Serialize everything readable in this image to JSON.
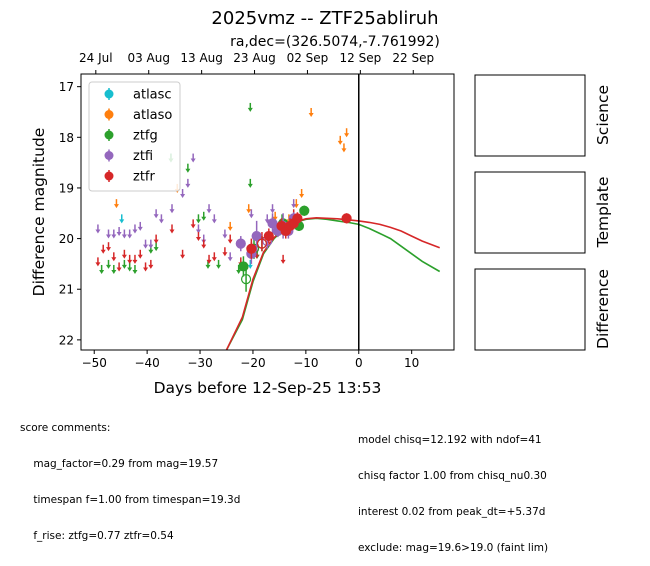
{
  "title": "2025vmz -- ZTF25abliruh",
  "subtitle": "ra,dec=(326.5074,-7.761992)",
  "chart_data": {
    "type": "scatter",
    "xlabel": "Days before 12-Sep-25 13:53",
    "ylabel": "Difference magnitude",
    "xlim": [
      -52.5,
      18
    ],
    "ylim": [
      22.2,
      16.75
    ],
    "xticks": [
      -50,
      -40,
      -30,
      -20,
      -10,
      0,
      10
    ],
    "yticks": [
      17,
      18,
      19,
      20,
      21,
      22
    ],
    "top_ticks": [
      {
        "x": -49.7,
        "label": "24 Jul"
      },
      {
        "x": -39.7,
        "label": "03 Aug"
      },
      {
        "x": -29.7,
        "label": "13 Aug"
      },
      {
        "x": -19.7,
        "label": "23 Aug"
      },
      {
        "x": -9.7,
        "label": "02 Sep"
      },
      {
        "x": 0.3,
        "label": "12 Sep"
      },
      {
        "x": 10.3,
        "label": "22 Sep"
      }
    ],
    "vline_x": 0,
    "legend_position": "upper-left",
    "series": [
      {
        "name": "atlasc",
        "color": "#17becf",
        "upper_limits": [
          [
            -44.8,
            19.6
          ],
          [
            -35.5,
            18.4
          ],
          [
            -20.5,
            20.5
          ]
        ],
        "detections": []
      },
      {
        "name": "atlaso",
        "color": "#ff7f0e",
        "upper_limits": [
          [
            -45.8,
            19.3
          ],
          [
            -34.3,
            19.0
          ],
          [
            -24.3,
            19.75
          ],
          [
            -20.8,
            19.4
          ],
          [
            -15.8,
            19.55
          ],
          [
            -13.2,
            19.6
          ],
          [
            -11.8,
            19.3
          ],
          [
            -10.8,
            19.1
          ],
          [
            -9.0,
            17.5
          ],
          [
            -3.5,
            18.05
          ],
          [
            -2.8,
            18.2
          ],
          [
            -2.3,
            17.9
          ]
        ],
        "detections": []
      },
      {
        "name": "ztfg",
        "color": "#2ca02c",
        "upper_limits": [
          [
            -48.6,
            20.6
          ],
          [
            -47.3,
            20.5
          ],
          [
            -46.3,
            20.6
          ],
          [
            -44.3,
            20.5
          ],
          [
            -43.3,
            20.55
          ],
          [
            -42.3,
            20.6
          ],
          [
            -39.3,
            20.2
          ],
          [
            -38.3,
            20.15
          ],
          [
            -35.5,
            18.4
          ],
          [
            -32.3,
            18.6
          ],
          [
            -30.3,
            19.6
          ],
          [
            -29.3,
            19.55
          ],
          [
            -28.5,
            20.5
          ],
          [
            -26.5,
            20.5
          ],
          [
            -22.7,
            20.6
          ],
          [
            -20.5,
            17.4
          ],
          [
            -20.5,
            18.9
          ],
          [
            -19.2,
            20.3
          ],
          [
            -14.5,
            19.6
          ]
        ],
        "detections": [
          [
            -21.8,
            20.55,
            0.2,
            false
          ],
          [
            -21.3,
            20.8,
            0.25,
            true
          ],
          [
            -19.8,
            20.2,
            0.2,
            true
          ],
          [
            -18.3,
            20.1,
            0.15,
            true
          ],
          [
            -15.3,
            19.85,
            0.12,
            false
          ],
          [
            -14.3,
            19.7,
            0.1,
            false
          ],
          [
            -11.8,
            19.65,
            0.12,
            false
          ],
          [
            -11.3,
            19.75,
            0.1,
            false
          ],
          [
            -10.3,
            19.45,
            0.1,
            false
          ]
        ]
      },
      {
        "name": "ztfi",
        "color": "#9467bd",
        "upper_limits": [
          [
            -49.3,
            19.8
          ],
          [
            -47.3,
            19.9
          ],
          [
            -46.3,
            19.9
          ],
          [
            -45.3,
            19.85
          ],
          [
            -44.3,
            19.9
          ],
          [
            -43.3,
            19.9
          ],
          [
            -42.3,
            19.8
          ],
          [
            -41.3,
            19.75
          ],
          [
            -40.3,
            20.1
          ],
          [
            -39.3,
            20.1
          ],
          [
            -38.3,
            19.5
          ],
          [
            -37.3,
            19.6
          ],
          [
            -35.3,
            19.4
          ],
          [
            -33.3,
            19.1
          ],
          [
            -32.3,
            18.9
          ],
          [
            -31.3,
            18.4
          ],
          [
            -30.3,
            19.8
          ],
          [
            -29.3,
            20.0
          ],
          [
            -28.3,
            19.4
          ],
          [
            -27.3,
            19.6
          ],
          [
            -25.3,
            19.9
          ],
          [
            -24.3,
            20.35
          ],
          [
            -20.3,
            19.5
          ],
          [
            -19.3,
            20.1
          ],
          [
            -17.3,
            19.6
          ],
          [
            -16.3,
            19.4
          ],
          [
            -12.3,
            19.3
          ],
          [
            -11.3,
            19.6
          ]
        ],
        "detections": [
          [
            -22.3,
            20.1,
            0.15,
            false
          ],
          [
            -20.3,
            20.3,
            0.2,
            false
          ],
          [
            -19.3,
            19.95,
            0.3,
            false
          ],
          [
            -17.3,
            20.05,
            0.15,
            true
          ],
          [
            -16.3,
            19.7,
            0.2,
            false
          ],
          [
            -15.3,
            19.85,
            0.12,
            false
          ],
          [
            -14.3,
            19.75,
            0.25,
            false
          ],
          [
            -13.3,
            19.85,
            0.15,
            false
          ],
          [
            -12.3,
            19.6,
            0.12,
            false
          ]
        ]
      },
      {
        "name": "ztfr",
        "color": "#d62728",
        "upper_limits": [
          [
            -49.3,
            20.45
          ],
          [
            -48.3,
            20.2
          ],
          [
            -47.3,
            20.15
          ],
          [
            -46.3,
            20.35
          ],
          [
            -45.3,
            20.55
          ],
          [
            -44.3,
            20.3
          ],
          [
            -43.3,
            20.4
          ],
          [
            -42.3,
            20.4
          ],
          [
            -41.3,
            20.3
          ],
          [
            -40.3,
            20.55
          ],
          [
            -39.3,
            20.5
          ],
          [
            -38.3,
            20.0
          ],
          [
            -35.3,
            19.8
          ],
          [
            -33.3,
            20.3
          ],
          [
            -31.3,
            19.7
          ],
          [
            -30.3,
            19.95
          ],
          [
            -29.3,
            20.1
          ],
          [
            -28.3,
            20.4
          ],
          [
            -27.3,
            20.35
          ],
          [
            -25.3,
            20.25
          ],
          [
            -24.3,
            20.0
          ],
          [
            -22.3,
            20.45
          ],
          [
            -21.3,
            20.55
          ],
          [
            -20.3,
            20.15
          ],
          [
            -19.3,
            20.3
          ],
          [
            -18.3,
            19.95
          ],
          [
            -16.3,
            19.65
          ],
          [
            -14.3,
            20.4
          ],
          [
            -12.3,
            19.5
          ]
        ],
        "detections": [
          [
            -20.3,
            20.2,
            0.2,
            false
          ],
          [
            -18.3,
            20.1,
            0.15,
            true
          ],
          [
            -17.0,
            19.95,
            0.15,
            false
          ],
          [
            -14.6,
            19.75,
            0.15,
            false
          ],
          [
            -13.8,
            19.85,
            0.15,
            false
          ],
          [
            -13.0,
            19.75,
            0.15,
            false
          ],
          [
            -12.3,
            19.7,
            0.12,
            false
          ],
          [
            -11.6,
            19.6,
            0.12,
            false
          ],
          [
            -2.3,
            19.6,
            0.1,
            false
          ]
        ]
      }
    ],
    "model_curves": [
      {
        "color": "#2ca02c",
        "points": [
          [
            -25,
            22.2
          ],
          [
            -22,
            21.6
          ],
          [
            -20,
            20.85
          ],
          [
            -18,
            20.3
          ],
          [
            -16,
            20.0
          ],
          [
            -14,
            19.8
          ],
          [
            -12,
            19.68
          ],
          [
            -10,
            19.62
          ],
          [
            -8,
            19.6
          ],
          [
            -6,
            19.62
          ],
          [
            -4,
            19.65
          ],
          [
            -2,
            19.68
          ],
          [
            0,
            19.72
          ],
          [
            2,
            19.8
          ],
          [
            4,
            19.9
          ],
          [
            6,
            20.0
          ],
          [
            8,
            20.15
          ],
          [
            10,
            20.3
          ],
          [
            12,
            20.45
          ],
          [
            15.3,
            20.65
          ]
        ]
      },
      {
        "color": "#d62728",
        "points": [
          [
            -25,
            22.2
          ],
          [
            -22,
            21.55
          ],
          [
            -20,
            20.8
          ],
          [
            -18,
            20.27
          ],
          [
            -16,
            19.98
          ],
          [
            -14,
            19.78
          ],
          [
            -12,
            19.67
          ],
          [
            -10,
            19.61
          ],
          [
            -8,
            19.59
          ],
          [
            -6,
            19.6
          ],
          [
            -4,
            19.61
          ],
          [
            -2,
            19.63
          ],
          [
            0,
            19.65
          ],
          [
            2,
            19.68
          ],
          [
            4,
            19.72
          ],
          [
            6,
            19.78
          ],
          [
            8,
            19.85
          ],
          [
            10,
            19.95
          ],
          [
            12,
            20.05
          ],
          [
            15.3,
            20.18
          ]
        ]
      }
    ],
    "panels": [
      "Science",
      "Template",
      "Difference"
    ]
  },
  "comments": {
    "left": [
      "score comments:",
      "    mag_factor=0.29 from mag=19.57",
      "    timespan f=1.00 from timespan=19.3d",
      "    f_rise: ztfg=0.77 ztfr=0.54"
    ],
    "right": [
      "model chisq=12.192 with ndof=41",
      "chisq factor 1.00 from chisq_nu0.30",
      "interest 0.02 from peak_dt=+5.37d",
      "exclude: mag=19.6>19.0 (faint lim)"
    ]
  }
}
